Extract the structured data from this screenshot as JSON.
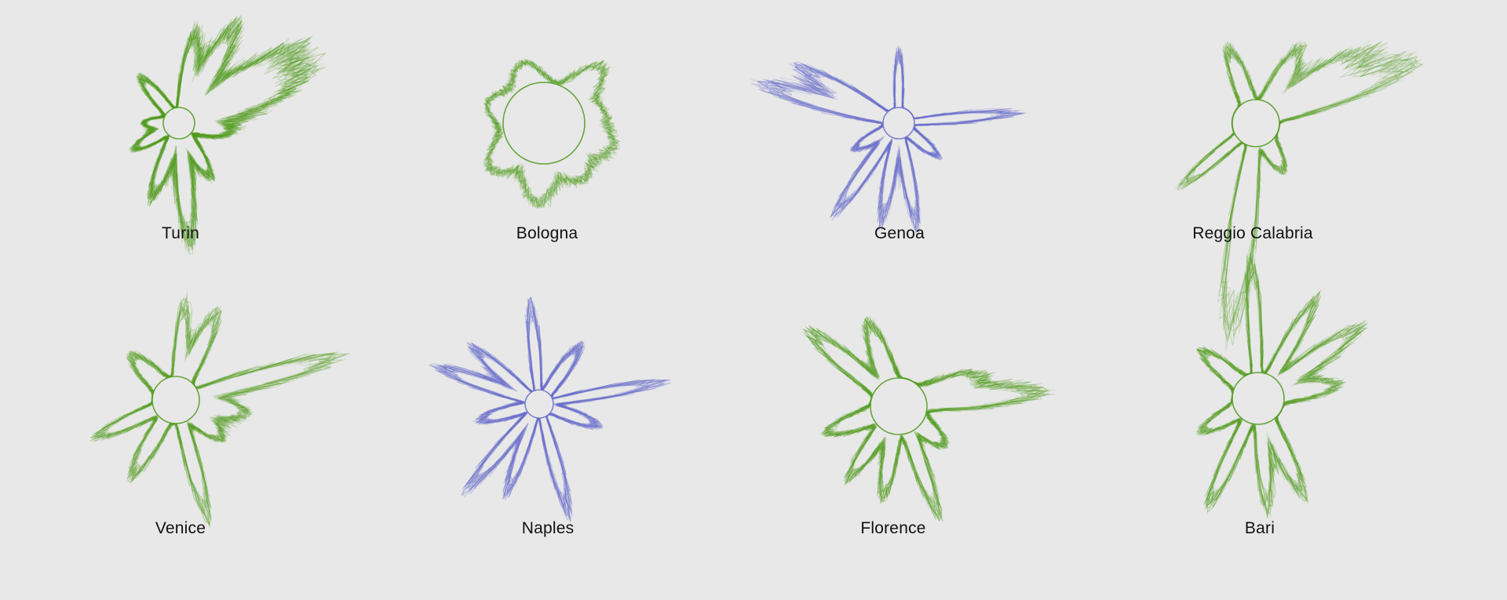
{
  "colors": {
    "background": "#e8e8e8",
    "green": "#4f9a1a",
    "purple": "#6a6fcc",
    "label": "#111111"
  },
  "cities": [
    {
      "name": "Turin",
      "color": "green",
      "seed": 11
    },
    {
      "name": "Bologna",
      "color": "green",
      "seed": 23
    },
    {
      "name": "Genoa",
      "color": "purple",
      "seed": 37
    },
    {
      "name": "Reggio Calabria",
      "color": "green",
      "seed": 41
    },
    {
      "name": "Venice",
      "color": "green",
      "seed": 53
    },
    {
      "name": "Naples",
      "color": "purple",
      "seed": 67
    },
    {
      "name": "Florence",
      "color": "green",
      "seed": 79
    },
    {
      "name": "Bari",
      "color": "green",
      "seed": 97
    }
  ]
}
